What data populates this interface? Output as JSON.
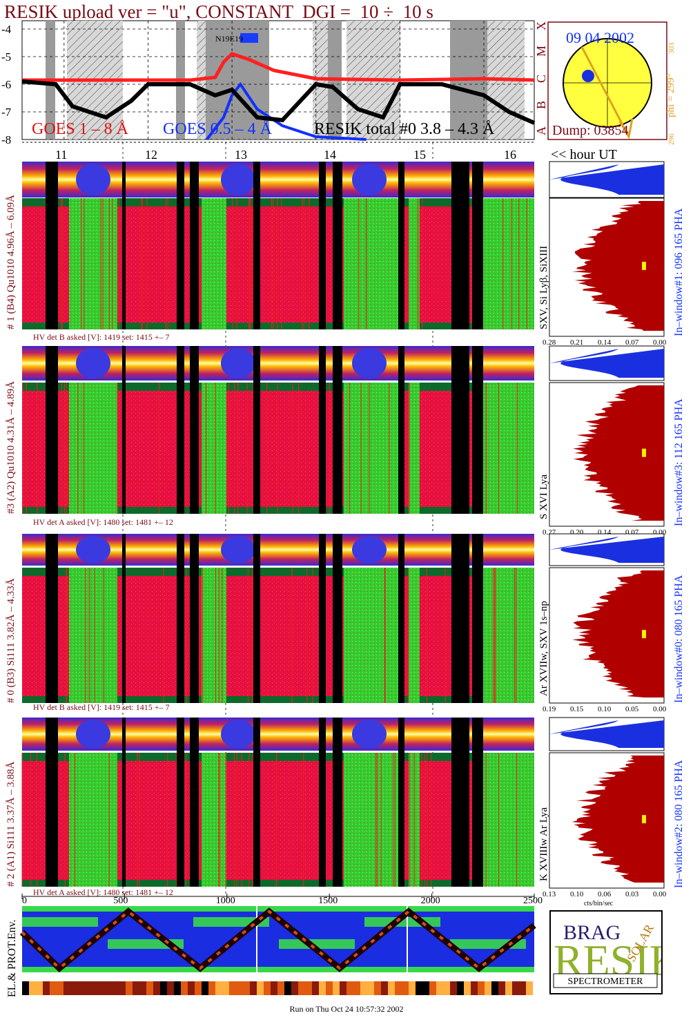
{
  "title": "RESIK upload ver = \"u\", CONSTANT  DGI =  10 ÷  10 s",
  "goes": {
    "ylabels": [
      "-4",
      "-5",
      "-6",
      "-7",
      "-8"
    ],
    "legend_goes18": "GOES 1 – 8 Å",
    "legend_goes054": "GOES 0.5 – 4 Å",
    "legend_resik": "RESIK total #0  3.8 – 4.3 Å",
    "flare_label": "N19E19",
    "class_labels": [
      "X",
      "M",
      "C",
      "B",
      "A"
    ]
  },
  "sun": {
    "date": "09 04 2002",
    "phi_label": "phi = 299°",
    "phi_top": "303",
    "phi_bottom": "296",
    "dump": "Dump: 03854"
  },
  "hours": [
    "11",
    "12",
    "13",
    "14",
    "15",
    "16"
  ],
  "hour_ut": "<< hour UT",
  "channels": [
    {
      "label": "# 1 (B4) Qu1010 4.96Å – 6.09Å",
      "lines": "SXV, Si Lyβ, SiXIII",
      "window": "In–window#1:  096 165 PHA",
      "hv": "HV det B asked [V]:  1419 set:  1415  +–    7",
      "pha_ticks": [
        "0.28",
        "0.21",
        "0.14",
        "0.07",
        "0.00"
      ]
    },
    {
      "label": "#3 (A2) Qu1010  4.31Å – 4.89Å",
      "lines": "S XVI Lya",
      "window": "In–window#3:  112 165 PHA",
      "hv": "HV det A asked [V]:  1480 set:  1481  +–    12",
      "pha_ticks": [
        "0.27",
        "0.20",
        "0.14",
        "0.07",
        "0.00"
      ]
    },
    {
      "label": "# 0 (B3) Si111  3.82Å – 4.33Å",
      "lines": "Ar XVIIw,  SXV 1s–np",
      "window": "In–window#0:  080 165 PHA",
      "hv": "HV det B asked [V]:  1419 set:  1415  +–    7",
      "pha_ticks": [
        "0.19",
        "0.15",
        "0.10",
        "0.05",
        "0.00"
      ]
    },
    {
      "label": "# 2 (A1) Si111  3.37Å – 3.88Å",
      "lines": "K XVIIIw  Ar Lya",
      "window": "In–window#2:  080 165 PHA",
      "hv": "HV det A asked [V]:  1480 set:  1481  +–    12",
      "pha_ticks": [
        "0.13",
        "0.10",
        "0.06",
        "0.03",
        "0.00"
      ]
    }
  ],
  "pha_unit": "cts/bin/sec",
  "bottom": {
    "axis_ticks": [
      "0",
      "500",
      "1000",
      "1500",
      "2000",
      "2500"
    ],
    "env_label": "EL.& PROT.Env."
  },
  "logo": {
    "letters": "RESIK",
    "top_letters": "BRAG",
    "side_letters": "SOLAR",
    "bottom": "SPECTROMETER"
  },
  "footer": "Run on Thu Oct 24 10:57:32 2002",
  "chart_data": [
    {
      "type": "line",
      "title": "RESIK upload ver = \"u\", CONSTANT  DGI =  10 ÷  10 s",
      "xlabel": "",
      "ylabel": "",
      "ylim": [
        -8,
        -3.7
      ],
      "x_unit_hours": [
        10.5,
        16.6
      ],
      "series": [
        {
          "name": "GOES 1 – 8 Å",
          "color": "#ff2020",
          "x": [
            10.5,
            11.5,
            12.5,
            12.8,
            12.9,
            13.0,
            13.2,
            13.5,
            14.0,
            15.0,
            16.0,
            16.6
          ],
          "y": [
            -5.85,
            -5.85,
            -5.85,
            -5.75,
            -5.2,
            -4.9,
            -5.1,
            -5.5,
            -5.8,
            -5.85,
            -5.8,
            -5.85
          ]
        },
        {
          "name": "GOES 0.5 – 4 Å",
          "color": "#1030ff",
          "x": [
            12.7,
            12.9,
            13.0,
            13.1,
            13.3,
            13.6,
            14.0,
            14.6
          ],
          "y": [
            -8.0,
            -7.2,
            -6.4,
            -6.0,
            -6.9,
            -7.5,
            -7.9,
            -8.0
          ]
        },
        {
          "name": "RESIK total #0  3.8 – 4.3 Å",
          "color": "#000000",
          "x": [
            10.5,
            10.9,
            11.1,
            11.5,
            11.8,
            12.0,
            12.5,
            12.8,
            13.0,
            13.3,
            13.6,
            14.0,
            14.2,
            14.5,
            14.8,
            15.0,
            15.5,
            16.0,
            16.3,
            16.6
          ],
          "y": [
            -5.9,
            -6.0,
            -6.8,
            -7.2,
            -6.6,
            -6.0,
            -6.0,
            -6.4,
            -6.2,
            -7.2,
            -7.3,
            -6.0,
            -6.1,
            -6.9,
            -7.2,
            -6.0,
            -6.0,
            -6.4,
            -7.0,
            -7.4
          ]
        }
      ]
    },
    {
      "type": "heatmap",
      "title": "",
      "xlabel": "",
      "ylabel": "",
      "x_ticks": [
        "0",
        "500",
        "1000",
        "1500",
        "2000",
        "2500"
      ],
      "xlim": [
        0,
        2500
      ]
    }
  ]
}
